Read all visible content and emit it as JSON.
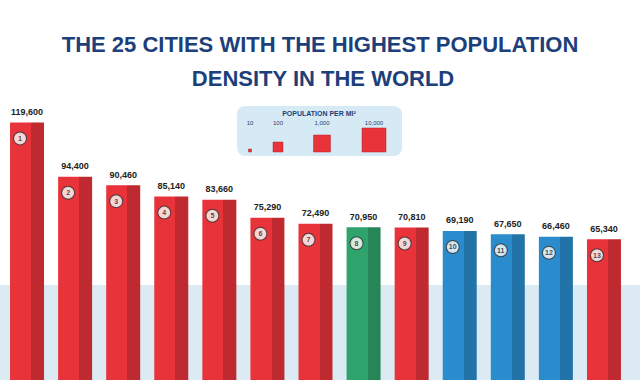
{
  "chart_data": {
    "type": "bar",
    "title": "THE 25 CITIES WITH THE HIGHEST POPULATION DENSITY IN THE WORLD",
    "categories": [
      "1",
      "2",
      "3",
      "4",
      "5",
      "6",
      "7",
      "8",
      "9",
      "10",
      "11",
      "12",
      "13"
    ],
    "values": [
      119600,
      94400,
      90460,
      85140,
      83660,
      75290,
      72490,
      70950,
      70810,
      69190,
      67650,
      66460,
      65340
    ],
    "value_labels": [
      "119,600",
      "94,400",
      "90,460",
      "85,140",
      "83,660",
      "75,290",
      "72,490",
      "70,950",
      "70,810",
      "69,190",
      "67,650",
      "66,460",
      "65,340"
    ],
    "colors": [
      "#e8333b",
      "#e8333b",
      "#e8333b",
      "#e8333b",
      "#e8333b",
      "#e8333b",
      "#e8333b",
      "#2ea36b",
      "#e8333b",
      "#2a8ccd",
      "#2a8ccd",
      "#2a8ccd",
      "#e8333b"
    ],
    "data_labels": true,
    "tick_labels": false,
    "grid": false,
    "ylim": [
      0,
      130000
    ],
    "yticks": [
      0,
      130000
    ],
    "annotations": {
      "title": "POPULATION PER MI²",
      "values": [
        10,
        100,
        1000,
        10000
      ],
      "value_labels": [
        "10",
        "100",
        "1,000",
        "10,000"
      ]
    }
  }
}
